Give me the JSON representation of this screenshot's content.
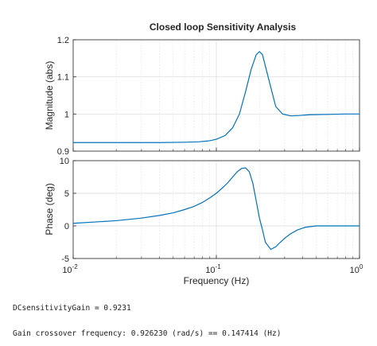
{
  "chart_data": {
    "type": "line",
    "title": "Closed loop Sensitivity Analysis",
    "xlabel": "Frequency  (Hz)",
    "x_scale": "log",
    "xlim": [
      0.01,
      1
    ],
    "x_ticks": [
      0.01,
      0.1,
      1
    ],
    "x_tick_labels": [
      {
        "base": "10",
        "exp": "-2"
      },
      {
        "base": "10",
        "exp": "-1"
      },
      {
        "base": "10",
        "exp": "0"
      }
    ],
    "grid": true,
    "line_color": "#0072bd",
    "subplots": [
      {
        "name": "magnitude",
        "ylabel": "Magnitude (abs)",
        "ylim": [
          0.9,
          1.2
        ],
        "y_ticks": [
          0.9,
          1,
          1.1,
          1.2
        ],
        "y_tick_labels": [
          "0.9",
          "1",
          "1.1",
          "1.2"
        ],
        "series": [
          {
            "x": [
              0.01,
              0.02,
              0.04,
              0.06,
              0.075,
              0.09,
              0.1,
              0.115,
              0.13,
              0.145,
              0.16,
              0.175,
              0.19,
              0.2,
              0.21,
              0.23,
              0.26,
              0.29,
              0.33,
              0.38,
              0.45,
              0.6,
              0.8,
              1.0
            ],
            "y": [
              0.923,
              0.923,
              0.923,
              0.924,
              0.925,
              0.928,
              0.932,
              0.942,
              0.963,
              1.0,
              1.06,
              1.12,
              1.16,
              1.168,
              1.16,
              1.1,
              1.02,
              1.0,
              0.995,
              0.996,
              0.998,
              0.999,
              1.0,
              1.0
            ]
          }
        ]
      },
      {
        "name": "phase",
        "ylabel": "Phase (deg)",
        "ylim": [
          -5,
          10
        ],
        "y_ticks": [
          -5,
          0,
          5,
          10
        ],
        "y_tick_labels": [
          "-5",
          "0",
          "5",
          "10"
        ],
        "series": [
          {
            "x": [
              0.01,
              0.02,
              0.03,
              0.04,
              0.05,
              0.06,
              0.07,
              0.08,
              0.09,
              0.1,
              0.11,
              0.12,
              0.13,
              0.14,
              0.15,
              0.16,
              0.17,
              0.18,
              0.19,
              0.2,
              0.21,
              0.22,
              0.24,
              0.26,
              0.28,
              0.3,
              0.33,
              0.37,
              0.42,
              0.5,
              0.6,
              0.8,
              1.0
            ],
            "y": [
              0.4,
              0.8,
              1.2,
              1.6,
              2.0,
              2.5,
              3.0,
              3.6,
              4.3,
              5.0,
              5.8,
              6.6,
              7.5,
              8.3,
              8.8,
              8.9,
              8.3,
              6.5,
              3.8,
              1.2,
              -0.6,
              -2.5,
              -3.6,
              -3.2,
              -2.5,
              -1.9,
              -1.2,
              -0.6,
              -0.2,
              0.0,
              0.0,
              0.0,
              0.0
            ]
          }
        ]
      }
    ]
  },
  "console": {
    "dc_line": "DCsensitivityGain = 0.9231",
    "gain_line": "Gain crossover frequency: 0.926230 (rad/s) == 0.147414 (Hz)"
  }
}
